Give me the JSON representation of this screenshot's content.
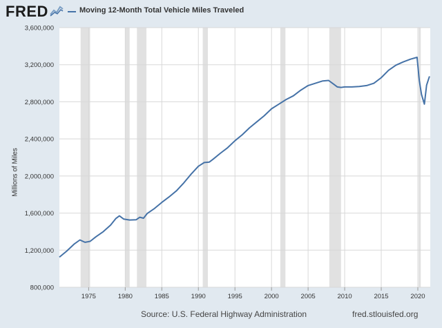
{
  "header": {
    "logo_text": "FRED",
    "logo_icon": "fred-chart-icon",
    "legend_label": "Moving 12-Month Total Vehicle Miles Traveled"
  },
  "footer": {
    "source": "Source: U.S. Federal Highway Administration",
    "url": "fred.stlouisfed.org"
  },
  "colors": {
    "line": "#4572a7",
    "background": "#e1e9f0",
    "plot_bg": "#ffffff",
    "recession": "#e1e1e1"
  },
  "chart_data": {
    "type": "line",
    "title": "Moving 12-Month Total Vehicle Miles Traveled",
    "xlabel": "",
    "ylabel": "Millions of Miles",
    "xlim": [
      1971.0,
      2021.7
    ],
    "ylim": [
      800000,
      3600000
    ],
    "yticks": [
      800000,
      1200000,
      1600000,
      2000000,
      2400000,
      2800000,
      3200000,
      3600000
    ],
    "ytick_labels": [
      "800,000",
      "1,200,000",
      "1,600,000",
      "2,000,000",
      "2,400,000",
      "2,800,000",
      "3,200,000",
      "3,600,000"
    ],
    "xticks": [
      1975,
      1980,
      1985,
      1990,
      1995,
      2000,
      2005,
      2010,
      2015,
      2020
    ],
    "xtick_labels": [
      "1975",
      "1980",
      "1985",
      "1990",
      "1995",
      "2000",
      "2005",
      "2010",
      "2015",
      "2020"
    ],
    "grid": true,
    "recessions": [
      [
        1973.9,
        1975.2
      ],
      [
        1980.0,
        1980.6
      ],
      [
        1981.6,
        1982.9
      ],
      [
        1990.6,
        1991.3
      ],
      [
        2001.2,
        2001.9
      ],
      [
        2007.9,
        2009.5
      ],
      [
        2020.1,
        2020.4
      ]
    ],
    "series": [
      {
        "name": "Moving 12-Month Total Vehicle Miles Traveled",
        "x": [
          1971.0,
          1972.0,
          1973.0,
          1973.8,
          1974.5,
          1975.2,
          1976.0,
          1977.0,
          1978.0,
          1978.7,
          1979.2,
          1979.8,
          1980.6,
          1981.5,
          1982.0,
          1982.5,
          1983.0,
          1984.0,
          1985.0,
          1986.0,
          1987.0,
          1988.0,
          1989.0,
          1990.0,
          1990.8,
          1991.5,
          1992.0,
          1993.0,
          1994.0,
          1995.0,
          1996.0,
          1997.0,
          1998.0,
          1999.0,
          2000.0,
          2001.0,
          2002.0,
          2003.0,
          2004.0,
          2005.0,
          2006.0,
          2007.0,
          2007.8,
          2008.5,
          2009.0,
          2009.5,
          2010.0,
          2011.0,
          2012.0,
          2013.0,
          2014.0,
          2015.0,
          2016.0,
          2017.0,
          2018.0,
          2019.0,
          2019.9,
          2020.2,
          2020.5,
          2020.9,
          2021.2,
          2021.6
        ],
        "values": [
          1125000,
          1190000,
          1265000,
          1310000,
          1285000,
          1295000,
          1345000,
          1400000,
          1470000,
          1540000,
          1570000,
          1535000,
          1525000,
          1528000,
          1555000,
          1545000,
          1595000,
          1650000,
          1715000,
          1775000,
          1840000,
          1925000,
          2020000,
          2105000,
          2145000,
          2150000,
          2180000,
          2245000,
          2305000,
          2380000,
          2445000,
          2520000,
          2585000,
          2650000,
          2725000,
          2775000,
          2825000,
          2865000,
          2925000,
          2975000,
          3000000,
          3025000,
          3030000,
          2990000,
          2960000,
          2955000,
          2960000,
          2960000,
          2965000,
          2975000,
          3000000,
          3060000,
          3140000,
          3195000,
          3230000,
          3260000,
          3280000,
          3030000,
          2880000,
          2775000,
          2980000,
          3075000
        ]
      }
    ]
  }
}
